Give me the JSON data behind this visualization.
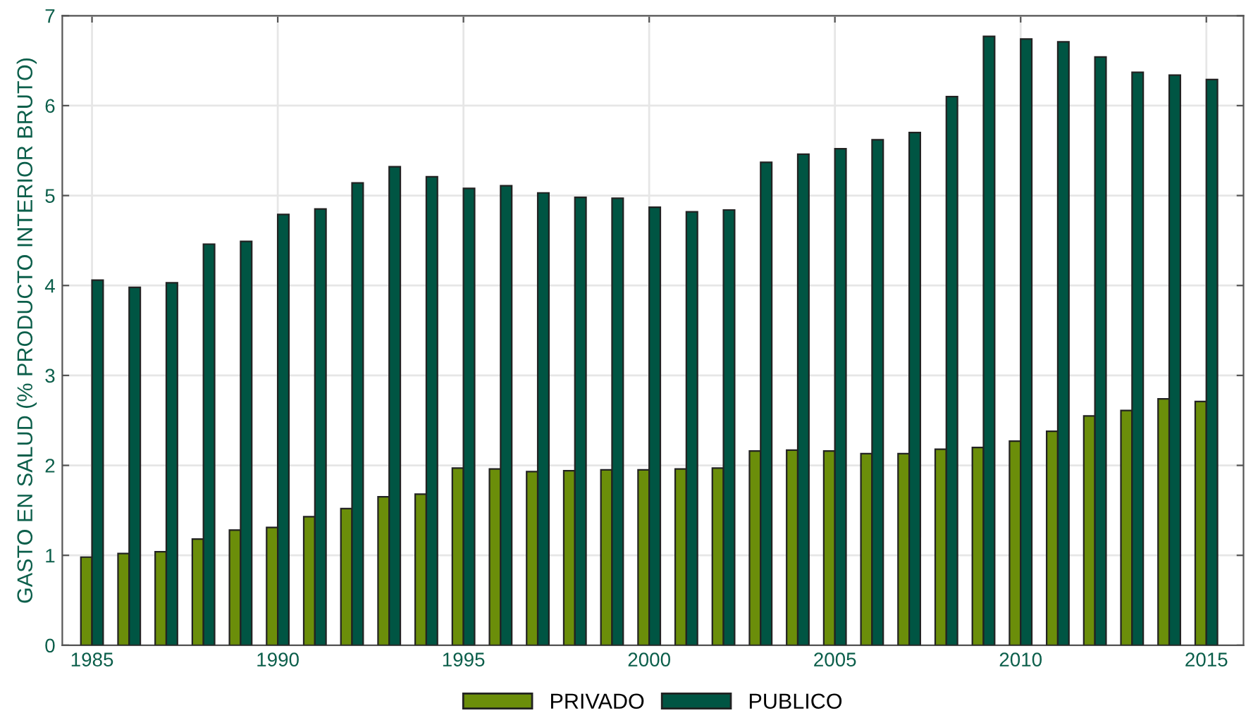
{
  "chart_data": {
    "type": "bar",
    "ylabel": "GASTO EN SALUD (% PRODUCTO INTERIOR BRUTO)",
    "x": [
      1985,
      1986,
      1987,
      1988,
      1989,
      1990,
      1991,
      1992,
      1993,
      1994,
      1995,
      1996,
      1997,
      1998,
      1999,
      2000,
      2001,
      2002,
      2003,
      2004,
      2005,
      2006,
      2007,
      2008,
      2009,
      2010,
      2011,
      2012,
      2013,
      2014,
      2015
    ],
    "series": [
      {
        "name": "PRIVADO",
        "color": "#6b8e0a",
        "values": [
          0.98,
          1.02,
          1.04,
          1.18,
          1.28,
          1.31,
          1.43,
          1.52,
          1.65,
          1.68,
          1.97,
          1.96,
          1.93,
          1.94,
          1.95,
          1.95,
          1.96,
          1.97,
          2.16,
          2.17,
          2.16,
          2.13,
          2.13,
          2.18,
          2.2,
          2.27,
          2.38,
          2.55,
          2.61,
          2.74,
          2.71
        ]
      },
      {
        "name": "PUBLICO",
        "color": "#005543",
        "values": [
          4.06,
          3.98,
          4.03,
          4.46,
          4.49,
          4.79,
          4.85,
          5.14,
          5.32,
          5.21,
          5.08,
          5.11,
          5.03,
          4.98,
          4.97,
          4.87,
          4.82,
          4.84,
          5.37,
          5.46,
          5.52,
          5.62,
          5.7,
          6.1,
          6.77,
          6.74,
          6.71,
          6.54,
          6.37,
          6.34,
          6.29
        ]
      }
    ],
    "xlim": [
      1984.2,
      2016
    ],
    "xticks": [
      1985,
      1990,
      1995,
      2000,
      2005,
      2010,
      2015
    ],
    "ylim": [
      0,
      7
    ],
    "yticks": [
      0,
      1,
      2,
      3,
      4,
      5,
      6,
      7
    ],
    "grid": true,
    "legend": "bottom"
  }
}
